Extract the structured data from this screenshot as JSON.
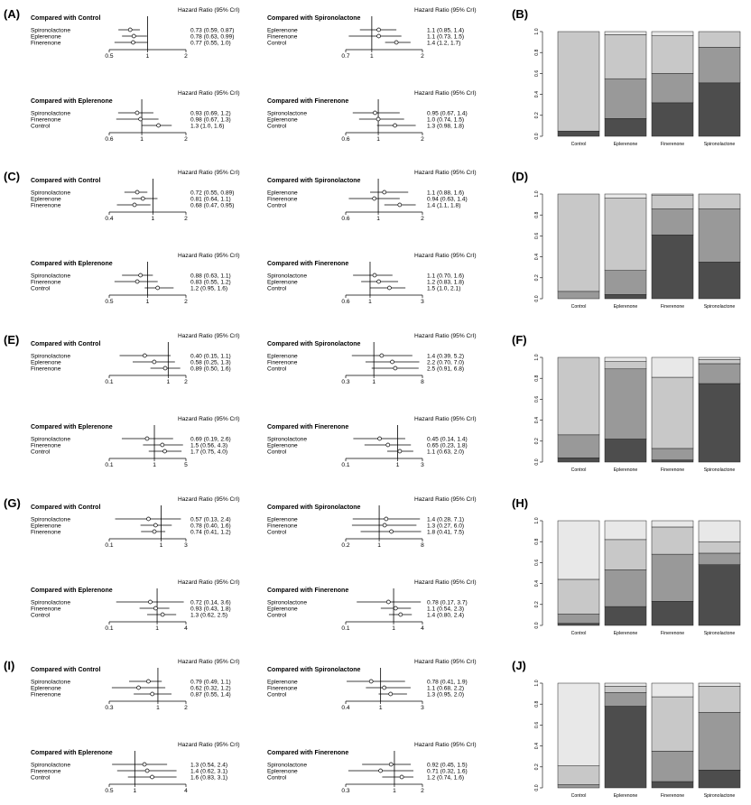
{
  "header_label": "Hazard Ratio (95% CrI)",
  "panels_forest": [
    {
      "letter": "(A)",
      "plots": [
        {
          "title": "Compared with Control",
          "ticks": [
            "0.5",
            "1",
            "2"
          ],
          "scale": "log",
          "xlim": [
            0.5,
            2
          ],
          "rows": [
            {
              "label": "Spironolactone",
              "text": "0.73 (0.59, 0.87)",
              "est": 0.73,
              "lo": 0.59,
              "hi": 0.87
            },
            {
              "label": "Eplerenone",
              "text": "0.78 (0.63, 0.99)",
              "est": 0.78,
              "lo": 0.63,
              "hi": 0.99
            },
            {
              "label": "Finerenone",
              "text": "0.77 (0.55, 1.0)",
              "est": 0.77,
              "lo": 0.55,
              "hi": 1.0
            }
          ]
        },
        {
          "title": "Compared with Spironolactone",
          "ticks": [
            "0.7",
            "1",
            "2"
          ],
          "scale": "log",
          "xlim": [
            0.7,
            2
          ],
          "rows": [
            {
              "label": "Eplerenone",
              "text": "1.1 (0.85, 1.4)",
              "est": 1.1,
              "lo": 0.85,
              "hi": 1.4
            },
            {
              "label": "Finerenone",
              "text": "1.1 (0.73, 1.5)",
              "est": 1.1,
              "lo": 0.73,
              "hi": 1.5
            },
            {
              "label": "Control",
              "text": "1.4 (1.2, 1.7)",
              "est": 1.4,
              "lo": 1.2,
              "hi": 1.7
            }
          ]
        },
        {
          "title": "Compared with Eplerenone",
          "ticks": [
            "0.6",
            "1",
            "2"
          ],
          "scale": "log",
          "xlim": [
            0.6,
            2
          ],
          "rows": [
            {
              "label": "Spironolactone",
              "text": "0.93 (0.69, 1.2)",
              "est": 0.93,
              "lo": 0.69,
              "hi": 1.2
            },
            {
              "label": "Finerenone",
              "text": "0.98 (0.67, 1.3)",
              "est": 0.98,
              "lo": 0.67,
              "hi": 1.3
            },
            {
              "label": "Control",
              "text": "1.3 (1.0, 1.6)",
              "est": 1.3,
              "lo": 1.0,
              "hi": 1.6
            }
          ]
        },
        {
          "title": "Compared with Finerenone",
          "ticks": [
            "0.6",
            "1",
            "2"
          ],
          "scale": "log",
          "xlim": [
            0.6,
            2
          ],
          "rows": [
            {
              "label": "Spironolactone",
              "text": "0.95 (0.67, 1.4)",
              "est": 0.95,
              "lo": 0.67,
              "hi": 1.4
            },
            {
              "label": "Eplerenone",
              "text": "1.0 (0.74, 1.5)",
              "est": 1.0,
              "lo": 0.74,
              "hi": 1.5
            },
            {
              "label": "Control",
              "text": "1.3 (0.98, 1.8)",
              "est": 1.3,
              "lo": 0.98,
              "hi": 1.8
            }
          ]
        }
      ]
    },
    {
      "letter": "(C)",
      "plots": [
        {
          "title": "Compared with Control",
          "ticks": [
            "0.4",
            "1",
            "2"
          ],
          "scale": "log",
          "xlim": [
            0.4,
            2
          ],
          "rows": [
            {
              "label": "Spironolactone",
              "text": "0.72 (0.55, 0.89)",
              "est": 0.72,
              "lo": 0.55,
              "hi": 0.89
            },
            {
              "label": "Eplerenone",
              "text": "0.81 (0.64, 1.1)",
              "est": 0.81,
              "lo": 0.64,
              "hi": 1.1
            },
            {
              "label": "Finerenone",
              "text": "0.68 (0.47, 0.95)",
              "est": 0.68,
              "lo": 0.47,
              "hi": 0.95
            }
          ]
        },
        {
          "title": "Compared with Spironolactone",
          "ticks": [
            "0.6",
            "1",
            "2"
          ],
          "scale": "log",
          "xlim": [
            0.6,
            2
          ],
          "rows": [
            {
              "label": "Eplerenone",
              "text": "1.1 (0.88, 1.6)",
              "est": 1.1,
              "lo": 0.88,
              "hi": 1.6
            },
            {
              "label": "Finerenone",
              "text": "0.94 (0.63, 1.4)",
              "est": 0.94,
              "lo": 0.63,
              "hi": 1.4
            },
            {
              "label": "Control",
              "text": "1.4 (1.1, 1.8)",
              "est": 1.4,
              "lo": 1.1,
              "hi": 1.8
            }
          ]
        },
        {
          "title": "Compared with Eplerenone",
          "ticks": [
            "0.5",
            "1",
            "2"
          ],
          "scale": "log",
          "xlim": [
            0.5,
            2
          ],
          "rows": [
            {
              "label": "Spironolactone",
              "text": "0.88 (0.63, 1.1)",
              "est": 0.88,
              "lo": 0.63,
              "hi": 1.1
            },
            {
              "label": "Finerenone",
              "text": "0.83 (0.55, 1.2)",
              "est": 0.83,
              "lo": 0.55,
              "hi": 1.2
            },
            {
              "label": "Control",
              "text": "1.2 (0.95, 1.6)",
              "est": 1.2,
              "lo": 0.95,
              "hi": 1.6
            }
          ]
        },
        {
          "title": "Compared with Finerenone",
          "ticks": [
            "0.6",
            "1",
            "3"
          ],
          "scale": "log",
          "xlim": [
            0.6,
            3
          ],
          "rows": [
            {
              "label": "Spironolactone",
              "text": "1.1 (0.70, 1.6)",
              "est": 1.1,
              "lo": 0.7,
              "hi": 1.6
            },
            {
              "label": "Eplerenone",
              "text": "1.2 (0.83, 1.8)",
              "est": 1.2,
              "lo": 0.83,
              "hi": 1.8
            },
            {
              "label": "Control",
              "text": "1.5 (1.0, 2.1)",
              "est": 1.5,
              "lo": 1.0,
              "hi": 2.1
            }
          ]
        }
      ]
    },
    {
      "letter": "(E)",
      "plots": [
        {
          "title": "Compared with Control",
          "ticks": [
            "0.1",
            "1",
            "2"
          ],
          "scale": "log",
          "xlim": [
            0.1,
            2
          ],
          "rows": [
            {
              "label": "Spironolactone",
              "text": "0.40 (0.15, 1.1)",
              "est": 0.4,
              "lo": 0.15,
              "hi": 1.1
            },
            {
              "label": "Eplerenone",
              "text": "0.58 (0.25, 1.3)",
              "est": 0.58,
              "lo": 0.25,
              "hi": 1.3
            },
            {
              "label": "Finerenone",
              "text": "0.89 (0.50, 1.6)",
              "est": 0.89,
              "lo": 0.5,
              "hi": 1.6
            }
          ]
        },
        {
          "title": "Compared with Spironolactone",
          "ticks": [
            "0.3",
            "1",
            "8"
          ],
          "scale": "log",
          "xlim": [
            0.3,
            8
          ],
          "rows": [
            {
              "label": "Eplerenone",
              "text": "1.4 (0.39, 5.2)",
              "est": 1.4,
              "lo": 0.39,
              "hi": 5.2
            },
            {
              "label": "Finerenone",
              "text": "2.2 (0.70, 7.0)",
              "est": 2.2,
              "lo": 0.7,
              "hi": 7.0
            },
            {
              "label": "Control",
              "text": "2.5 (0.91, 6.8)",
              "est": 2.5,
              "lo": 0.91,
              "hi": 6.8
            }
          ]
        },
        {
          "title": "Compared with Eplerenone",
          "ticks": [
            "0.1",
            "1",
            "5"
          ],
          "scale": "log",
          "xlim": [
            0.1,
            5
          ],
          "rows": [
            {
              "label": "Spironolactone",
              "text": "0.69 (0.19, 2.6)",
              "est": 0.69,
              "lo": 0.19,
              "hi": 2.6
            },
            {
              "label": "Finerenone",
              "text": "1.5 (0.56, 4.3)",
              "est": 1.5,
              "lo": 0.56,
              "hi": 4.3
            },
            {
              "label": "Control",
              "text": "1.7 (0.75, 4.0)",
              "est": 1.7,
              "lo": 0.75,
              "hi": 4.0
            }
          ]
        },
        {
          "title": "Compared with Finerenone",
          "ticks": [
            "0.1",
            "1",
            "3"
          ],
          "scale": "log",
          "xlim": [
            0.1,
            3
          ],
          "rows": [
            {
              "label": "Spironolactone",
              "text": "0.45 (0.14, 1.4)",
              "est": 0.45,
              "lo": 0.14,
              "hi": 1.4
            },
            {
              "label": "Eplerenone",
              "text": "0.65 (0.23, 1.8)",
              "est": 0.65,
              "lo": 0.23,
              "hi": 1.8
            },
            {
              "label": "Control",
              "text": "1.1 (0.63, 2.0)",
              "est": 1.1,
              "lo": 0.63,
              "hi": 2.0
            }
          ]
        }
      ]
    },
    {
      "letter": "(G)",
      "plots": [
        {
          "title": "Compared with Control",
          "ticks": [
            "0.1",
            "1",
            "3"
          ],
          "scale": "log",
          "xlim": [
            0.1,
            3
          ],
          "rows": [
            {
              "label": "Spironolactone",
              "text": "0.57 (0.13, 2.4)",
              "est": 0.57,
              "lo": 0.13,
              "hi": 2.4
            },
            {
              "label": "Eplerenone",
              "text": "0.78 (0.40, 1.6)",
              "est": 0.78,
              "lo": 0.4,
              "hi": 1.6
            },
            {
              "label": "Finerenone",
              "text": "0.74 (0.41, 1.2)",
              "est": 0.74,
              "lo": 0.41,
              "hi": 1.2
            }
          ]
        },
        {
          "title": "Compared with Spironolactone",
          "ticks": [
            "0.2",
            "1",
            "8"
          ],
          "scale": "log",
          "xlim": [
            0.2,
            8
          ],
          "rows": [
            {
              "label": "Eplerenone",
              "text": "1.4 (0.28, 7.1)",
              "est": 1.4,
              "lo": 0.28,
              "hi": 7.1
            },
            {
              "label": "Finerenone",
              "text": "1.3 (0.27, 6.0)",
              "est": 1.3,
              "lo": 0.27,
              "hi": 6.0
            },
            {
              "label": "Control",
              "text": "1.8 (0.41, 7.5)",
              "est": 1.8,
              "lo": 0.41,
              "hi": 7.5
            }
          ]
        },
        {
          "title": "Compared with Eplerenone",
          "ticks": [
            "0.1",
            "1",
            "4"
          ],
          "scale": "log",
          "xlim": [
            0.1,
            4
          ],
          "rows": [
            {
              "label": "Spironolactone",
              "text": "0.72 (0.14, 3.6)",
              "est": 0.72,
              "lo": 0.14,
              "hi": 3.6
            },
            {
              "label": "Finerenone",
              "text": "0.93 (0.43, 1.8)",
              "est": 0.93,
              "lo": 0.43,
              "hi": 1.8
            },
            {
              "label": "Control",
              "text": "1.3 (0.62, 2.5)",
              "est": 1.3,
              "lo": 0.62,
              "hi": 2.5
            }
          ]
        },
        {
          "title": "Compared with Finerenone",
          "ticks": [
            "0.1",
            "1",
            "4"
          ],
          "scale": "log",
          "xlim": [
            0.1,
            4
          ],
          "rows": [
            {
              "label": "Spironolactone",
              "text": "0.78 (0.17, 3.7)",
              "est": 0.78,
              "lo": 0.17,
              "hi": 3.7
            },
            {
              "label": "Eplerenone",
              "text": "1.1 (0.54, 2.3)",
              "est": 1.1,
              "lo": 0.54,
              "hi": 2.3
            },
            {
              "label": "Control",
              "text": "1.4 (0.80, 2.4)",
              "est": 1.4,
              "lo": 0.8,
              "hi": 2.4
            }
          ]
        }
      ]
    },
    {
      "letter": "(I)",
      "plots": [
        {
          "title": "Compared with Control",
          "ticks": [
            "0.3",
            "1",
            "2"
          ],
          "scale": "log",
          "xlim": [
            0.3,
            2
          ],
          "rows": [
            {
              "label": "Spironolactone",
              "text": "0.79 (0.49, 1.1)",
              "est": 0.79,
              "lo": 0.49,
              "hi": 1.1
            },
            {
              "label": "Eplerenone",
              "text": "0.62 (0.32, 1.2)",
              "est": 0.62,
              "lo": 0.32,
              "hi": 1.2
            },
            {
              "label": "Finerenone",
              "text": "0.87 (0.55, 1.4)",
              "est": 0.87,
              "lo": 0.55,
              "hi": 1.4
            }
          ]
        },
        {
          "title": "Compared with Spironolactone",
          "ticks": [
            "0.4",
            "1",
            "3"
          ],
          "scale": "log",
          "xlim": [
            0.4,
            3
          ],
          "rows": [
            {
              "label": "Eplerenone",
              "text": "0.78 (0.41, 1.9)",
              "est": 0.78,
              "lo": 0.41,
              "hi": 1.9
            },
            {
              "label": "Finerenone",
              "text": "1.1 (0.68, 2.2)",
              "est": 1.1,
              "lo": 0.68,
              "hi": 2.2
            },
            {
              "label": "Control",
              "text": "1.3 (0.95, 2.0)",
              "est": 1.3,
              "lo": 0.95,
              "hi": 2.0
            }
          ]
        },
        {
          "title": "Compared with Eplerenone",
          "ticks": [
            "0.5",
            "1",
            "4"
          ],
          "scale": "log",
          "xlim": [
            0.5,
            4
          ],
          "rows": [
            {
              "label": "Spironolactone",
              "text": "1.3 (0.54, 2.4)",
              "est": 1.3,
              "lo": 0.54,
              "hi": 2.4
            },
            {
              "label": "Finerenone",
              "text": "1.4 (0.62, 3.1)",
              "est": 1.4,
              "lo": 0.62,
              "hi": 3.1
            },
            {
              "label": "Control",
              "text": "1.6 (0.83, 3.1)",
              "est": 1.6,
              "lo": 0.83,
              "hi": 3.1
            }
          ]
        },
        {
          "title": "Compared with Finerenone",
          "ticks": [
            "0.3",
            "1",
            "2"
          ],
          "scale": "log",
          "xlim": [
            0.3,
            2
          ],
          "rows": [
            {
              "label": "Spironolactone",
              "text": "0.92 (0.45, 1.5)",
              "est": 0.92,
              "lo": 0.45,
              "hi": 1.5
            },
            {
              "label": "Eplerenone",
              "text": "0.71 (0.32, 1.6)",
              "est": 0.71,
              "lo": 0.32,
              "hi": 1.6
            },
            {
              "label": "Control",
              "text": "1.2 (0.74, 1.6)",
              "est": 1.2,
              "lo": 0.74,
              "hi": 1.6
            }
          ]
        }
      ]
    }
  ],
  "panels_bar": [
    {
      "letter": "(B)",
      "segments": [
        [
          0.05,
          0.0,
          0.95,
          0.0
        ],
        [
          0.17,
          0.38,
          0.42,
          0.03
        ],
        [
          0.32,
          0.28,
          0.36,
          0.04
        ],
        [
          0.51,
          0.34,
          0.15,
          0.0
        ]
      ]
    },
    {
      "letter": "(D)",
      "segments": [
        [
          0.0,
          0.07,
          0.93,
          0.0
        ],
        [
          0.04,
          0.23,
          0.69,
          0.04
        ],
        [
          0.61,
          0.25,
          0.13,
          0.01
        ],
        [
          0.35,
          0.51,
          0.14,
          0.0
        ]
      ]
    },
    {
      "letter": "(F)",
      "segments": [
        [
          0.04,
          0.22,
          0.74,
          0.0
        ],
        [
          0.22,
          0.67,
          0.07,
          0.04
        ],
        [
          0.02,
          0.11,
          0.68,
          0.19
        ],
        [
          0.75,
          0.19,
          0.04,
          0.02
        ]
      ]
    },
    {
      "letter": "(H)",
      "segments": [
        [
          0.02,
          0.09,
          0.33,
          0.56
        ],
        [
          0.18,
          0.35,
          0.29,
          0.18
        ],
        [
          0.23,
          0.45,
          0.26,
          0.06
        ],
        [
          0.58,
          0.11,
          0.11,
          0.2
        ]
      ]
    },
    {
      "letter": "(J)",
      "segments": [
        [
          0.0,
          0.03,
          0.18,
          0.79
        ],
        [
          0.78,
          0.13,
          0.06,
          0.03
        ],
        [
          0.06,
          0.29,
          0.52,
          0.13
        ],
        [
          0.17,
          0.55,
          0.25,
          0.03
        ]
      ]
    }
  ],
  "chart_data": {
    "type": "bar",
    "stacked": true,
    "categories": [
      "Control",
      "Eplerenone",
      "Finerenone",
      "Spironolactone"
    ],
    "ylim": [
      0,
      1
    ],
    "yticks": [
      "0.0",
      "0.2",
      "0.4",
      "0.6",
      "0.8",
      "1.0"
    ],
    "segment_colors": [
      "#4d4d4d",
      "#999999",
      "#c8c8c8",
      "#e8e8e8"
    ]
  }
}
